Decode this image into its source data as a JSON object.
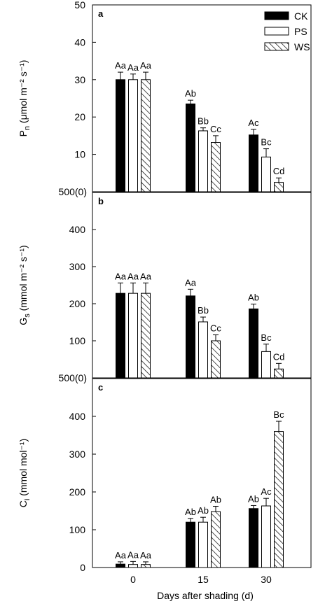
{
  "chart_data": {
    "type": "bar",
    "xlabel": "Days after shading (d)",
    "categories": [
      "0",
      "15",
      "30"
    ],
    "legend": {
      "placement": "top-right",
      "entries": [
        {
          "name": "CK",
          "fill": "solid-black"
        },
        {
          "name": "PS",
          "fill": "white"
        },
        {
          "name": "WS",
          "fill": "diagonal-hatch"
        }
      ]
    },
    "panels": [
      {
        "letter": "a",
        "ylabel_base": "P",
        "ylabel_sub": "n",
        "ylabel_rest": " (μmol m⁻² s⁻¹)",
        "ylim": [
          0,
          50
        ],
        "yticks": [
          "",
          "10",
          "20",
          "30",
          "40",
          "50"
        ],
        "zero_label": "500(0)",
        "series": [
          {
            "name": "CK",
            "values": [
              30,
              23.5,
              15.2
            ],
            "errors": [
              2,
              1,
              1.5
            ],
            "labels": [
              "Aa",
              "Ab",
              "Ac"
            ]
          },
          {
            "name": "PS",
            "values": [
              30,
              16.3,
              9.3
            ],
            "errors": [
              1.5,
              0.8,
              2.2
            ],
            "labels": [
              "Aa",
              "Bb",
              "Bc"
            ]
          },
          {
            "name": "WS",
            "values": [
              30,
              13.2,
              2.5
            ],
            "errors": [
              2,
              1.8,
              1.2
            ],
            "labels": [
              "Aa",
              "Cc",
              "Cd"
            ]
          }
        ]
      },
      {
        "letter": "b",
        "ylabel_base": "G",
        "ylabel_sub": "s",
        "ylabel_rest": " (mmol m⁻² s⁻¹)",
        "ylim": [
          0,
          500
        ],
        "yticks": [
          "",
          "100",
          "200",
          "300",
          "400"
        ],
        "zero_label": "500(0)",
        "series": [
          {
            "name": "CK",
            "values": [
              228,
              221,
              186
            ],
            "errors": [
              28,
              18,
              13
            ],
            "labels": [
              "Aa",
              "Aa",
              "Ab"
            ]
          },
          {
            "name": "PS",
            "values": [
              228,
              151,
              71
            ],
            "errors": [
              28,
              13,
              20
            ],
            "labels": [
              "Aa",
              "Bb",
              "Bc"
            ]
          },
          {
            "name": "WS",
            "values": [
              228,
              100,
              24
            ],
            "errors": [
              28,
              16,
              15
            ],
            "labels": [
              "Aa",
              "Cc",
              "Cd"
            ]
          }
        ]
      },
      {
        "letter": "c",
        "ylabel_base": "C",
        "ylabel_sub": "i",
        "ylabel_rest": " (mmol mol⁻¹)",
        "ylim": [
          0,
          500
        ],
        "yticks": [
          "0",
          "100",
          "200",
          "300",
          "400"
        ],
        "zero_label": "",
        "series": [
          {
            "name": "CK",
            "values": [
              9,
              120,
              156
            ],
            "errors": [
              6,
              10,
              8
            ],
            "labels": [
              "Aa",
              "Ab",
              "Ab"
            ]
          },
          {
            "name": "PS",
            "values": [
              8,
              120,
              163
            ],
            "errors": [
              8,
              13,
              20
            ],
            "labels": [
              "Aa",
              "Ab",
              "Ac"
            ]
          },
          {
            "name": "WS",
            "values": [
              8,
              148,
              360
            ],
            "errors": [
              7,
              14,
              27
            ],
            "labels": [
              "Aa",
              "Ab",
              "Bc"
            ]
          }
        ]
      }
    ]
  }
}
